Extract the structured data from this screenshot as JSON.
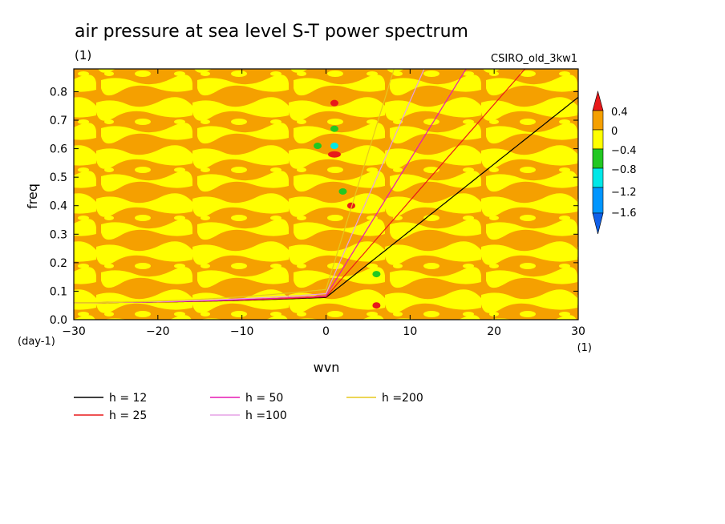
{
  "chart_data": {
    "type": "heatmap",
    "title": "air pressure at sea level S-T power spectrum",
    "subtitle_units": "(1)",
    "model": "CSIRO_old_3kw1",
    "xlabel": "wvn",
    "ylabel": "freq",
    "xunits": "(1)",
    "yunits": "(day-1)",
    "xlim": [
      -30,
      30
    ],
    "ylim": [
      0,
      0.88
    ],
    "xticks": [
      -30,
      -20,
      -10,
      0,
      10,
      20,
      30
    ],
    "yticks": [
      0.0,
      0.1,
      0.2,
      0.3,
      0.4,
      0.5,
      0.6,
      0.7,
      0.8
    ],
    "xtick_labels": [
      "−30",
      "−20",
      "−10",
      "0",
      "10",
      "20",
      "30"
    ],
    "ytick_labels": [
      "0.0",
      "0.1",
      "0.2",
      "0.3",
      "0.4",
      "0.5",
      "0.6",
      "0.7",
      "0.8"
    ],
    "colorbar": {
      "labels": [
        "0.4",
        "0",
        "−0.4",
        "−0.8",
        "−1.2",
        "−1.6"
      ],
      "colors": {
        "above_0.4": "#e8191a",
        "0_to_0.4": "#f5a000",
        "-0.4_to_0": "#ffff00",
        "-0.8_to_-0.4": "#22c822",
        "-1.2_to_-0.8": "#00e8e8",
        "-1.6_to_-1.2": "#0096ff",
        "below_-1.6": "#1060e8"
      }
    },
    "background_pattern": "mottled alternating 0_to_0.4 and -0.4_to_0 levels",
    "features": [
      {
        "wvn": 1,
        "freq": 0.58,
        "level": "above_0.4"
      },
      {
        "wvn": 1,
        "freq": 0.61,
        "level": "-1.2_to_-0.8"
      },
      {
        "wvn": 1,
        "freq": 0.76,
        "level": "above_0.4"
      },
      {
        "wvn": 2,
        "freq": 0.45,
        "level": "-0.8_to_-0.4"
      },
      {
        "wvn": 1,
        "freq": 0.67,
        "level": "-0.8_to_-0.4"
      },
      {
        "wvn": -1,
        "freq": 0.61,
        "level": "-0.8_to_-0.4"
      },
      {
        "wvn": 6,
        "freq": 0.05,
        "level": "above_0.4"
      },
      {
        "wvn": 6,
        "freq": 0.16,
        "level": "-0.8_to_-0.4"
      },
      {
        "wvn": 3,
        "freq": 0.4,
        "level": "above_0.4"
      }
    ],
    "series": [
      {
        "name": "h = 12",
        "h": 12,
        "color": "#000000"
      },
      {
        "name": "h = 25",
        "h": 25,
        "color": "#e8191a"
      },
      {
        "name": "h = 50",
        "h": 50,
        "color": "#e619b4"
      },
      {
        "name": "h =100",
        "h": 100,
        "color": "#e6a0e6"
      },
      {
        "name": "h =200",
        "h": 200,
        "color": "#e6c81e"
      }
    ]
  }
}
